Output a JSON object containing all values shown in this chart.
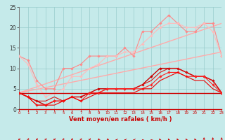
{
  "xlabel": "Vent moyen/en rafales ( km/h )",
  "xlim": [
    0,
    23
  ],
  "ylim": [
    0,
    25
  ],
  "xticks": [
    0,
    1,
    2,
    3,
    4,
    5,
    6,
    7,
    8,
    9,
    10,
    11,
    12,
    13,
    14,
    15,
    16,
    17,
    18,
    19,
    20,
    21,
    22,
    23
  ],
  "yticks": [
    0,
    5,
    10,
    15,
    20,
    25
  ],
  "background_color": "#c5eaea",
  "grid_color": "#99cccc",
  "lines": [
    {
      "x": [
        0,
        23
      ],
      "y": [
        4,
        21
      ],
      "color": "#ffaaaa",
      "lw": 1.0,
      "marker": null
    },
    {
      "x": [
        0,
        23
      ],
      "y": [
        4,
        14
      ],
      "color": "#ffaaaa",
      "lw": 1.0,
      "marker": null
    },
    {
      "x": [
        0,
        1,
        2,
        3,
        4,
        5,
        6,
        7,
        8,
        9,
        10,
        11,
        12,
        13,
        14,
        15,
        16,
        17,
        18,
        19,
        20,
        21,
        22,
        23
      ],
      "y": [
        13,
        12,
        7,
        5,
        5,
        10,
        10,
        11,
        13,
        13,
        13,
        13,
        15,
        13,
        19,
        19,
        21,
        23,
        21,
        19,
        19,
        21,
        21,
        13
      ],
      "color": "#ff8888",
      "lw": 0.8,
      "marker": "D",
      "ms": 1.8
    },
    {
      "x": [
        0,
        1,
        2,
        3,
        4,
        5,
        6,
        7,
        8,
        9,
        10,
        11,
        12,
        13,
        14,
        15,
        16,
        17,
        18,
        19,
        20,
        21,
        22,
        23
      ],
      "y": [
        13,
        11,
        6,
        3,
        4,
        5,
        8,
        8,
        10,
        11,
        13,
        13,
        14,
        14,
        16,
        18,
        20,
        21,
        21,
        20,
        20,
        21,
        19,
        13
      ],
      "color": "#ffbbbb",
      "lw": 0.8,
      "marker": "D",
      "ms": 1.8
    },
    {
      "x": [
        0,
        23
      ],
      "y": [
        4,
        4
      ],
      "color": "#cc0000",
      "lw": 1.0,
      "marker": null
    },
    {
      "x": [
        0,
        1,
        2,
        3,
        4,
        5,
        6,
        7,
        8,
        9,
        10,
        11,
        12,
        13,
        14,
        15,
        16,
        17,
        18,
        19,
        20,
        21,
        22,
        23
      ],
      "y": [
        4,
        3,
        2,
        1,
        2,
        2,
        3,
        3,
        4,
        5,
        5,
        5,
        5,
        5,
        6,
        8,
        10,
        10,
        10,
        9,
        8,
        8,
        7,
        4
      ],
      "color": "#cc0000",
      "lw": 1.0,
      "marker": "D",
      "ms": 1.8
    },
    {
      "x": [
        0,
        1,
        2,
        3,
        4,
        5,
        6,
        7,
        8,
        9,
        10,
        11,
        12,
        13,
        14,
        15,
        16,
        17,
        18,
        19,
        20,
        21,
        22,
        23
      ],
      "y": [
        4,
        3,
        2,
        2,
        3,
        2,
        3,
        3,
        4,
        4,
        5,
        5,
        5,
        5,
        6,
        7,
        9,
        10,
        10,
        9,
        8,
        8,
        7,
        4
      ],
      "color": "#dd1111",
      "lw": 0.8,
      "marker": null
    },
    {
      "x": [
        0,
        1,
        2,
        3,
        4,
        5,
        6,
        7,
        8,
        9,
        10,
        11,
        12,
        13,
        14,
        15,
        16,
        17,
        18,
        19,
        20,
        21,
        22,
        23
      ],
      "y": [
        4,
        3,
        1,
        1,
        2,
        2,
        3,
        2,
        4,
        4,
        5,
        5,
        5,
        5,
        5,
        6,
        8,
        9,
        9,
        8,
        8,
        8,
        6,
        4
      ],
      "color": "#ff2222",
      "lw": 0.8,
      "marker": "D",
      "ms": 1.8
    },
    {
      "x": [
        0,
        1,
        2,
        3,
        4,
        5,
        6,
        7,
        8,
        9,
        10,
        11,
        12,
        13,
        14,
        15,
        16,
        17,
        18,
        19,
        20,
        21,
        22,
        23
      ],
      "y": [
        4,
        3,
        1,
        1,
        1,
        2,
        3,
        2,
        3,
        4,
        4,
        4,
        4,
        4,
        5,
        5,
        7,
        8,
        9,
        8,
        7,
        7,
        5,
        4
      ],
      "color": "#ee0000",
      "lw": 0.8,
      "marker": null
    }
  ],
  "arrow_angles_deg": [
    225,
    225,
    225,
    225,
    225,
    225,
    225,
    225,
    225,
    200,
    200,
    180,
    180,
    180,
    160,
    160,
    135,
    135,
    135,
    135,
    135,
    90,
    90,
    90
  ]
}
